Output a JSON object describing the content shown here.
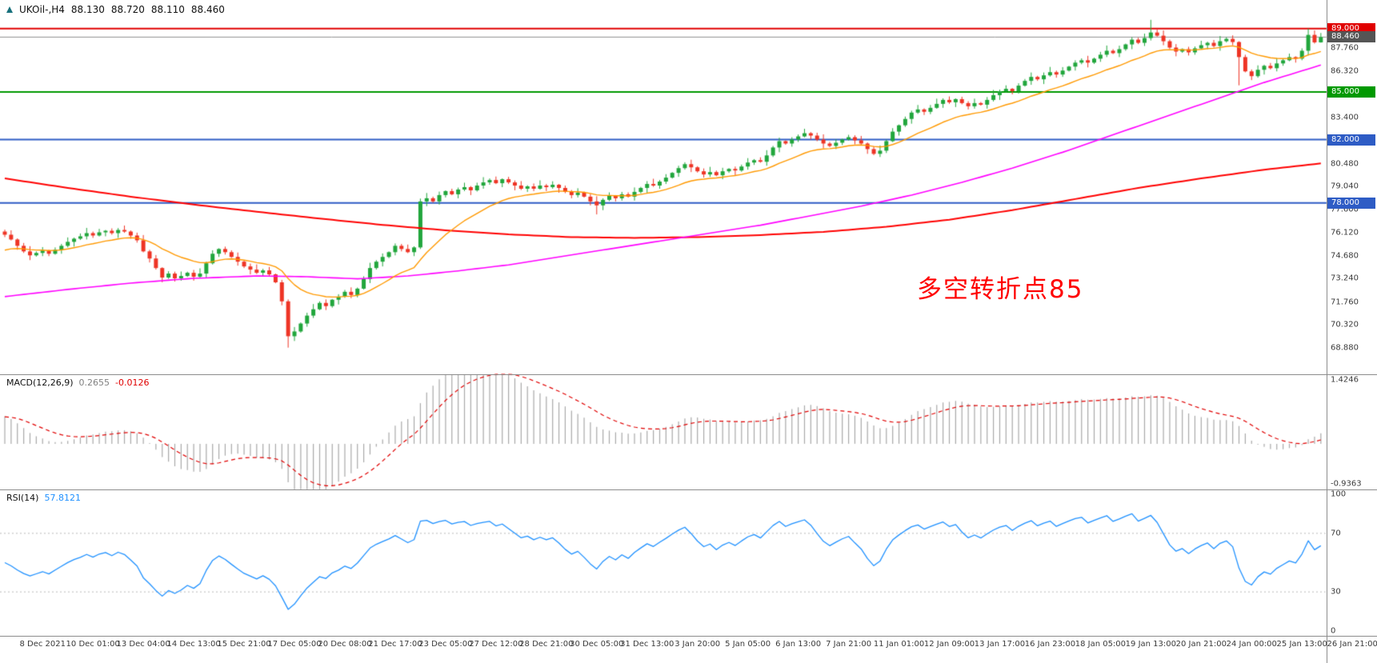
{
  "annotation": {
    "text": "多空转折点85",
    "color": "#ff0000"
  },
  "colors": {
    "candle_up": "#21a63c",
    "candle_down": "#ee3425",
    "ma_fast": "#ff9900",
    "ma_mid": "#ff00ff",
    "ma_slow": "#ff0000",
    "bid_line": "#8f8f8f",
    "macd_bar": "#a8a8a8",
    "macd_signal": "#e00000",
    "rsi_line": "#1e90ff",
    "level_dotted": "#b8b8b8",
    "axis_text": "#3a3a3a"
  },
  "chart_data": [
    {
      "type": "candlestick",
      "title": "UKOil-,H4",
      "ohlc_display": {
        "open": "88.130",
        "high": "88.720",
        "low": "88.110",
        "close": "88.460"
      },
      "ylim": [
        67.2,
        90.8
      ],
      "first_open": 76.2,
      "closes": [
        76.0,
        75.7,
        75.3,
        74.95,
        74.7,
        74.85,
        75.0,
        74.8,
        75.05,
        75.3,
        75.55,
        75.75,
        75.9,
        76.1,
        75.95,
        76.15,
        76.25,
        76.1,
        76.3,
        76.2,
        75.95,
        75.65,
        74.95,
        74.5,
        73.9,
        73.3,
        73.55,
        73.25,
        73.4,
        73.6,
        73.35,
        73.55,
        74.2,
        74.8,
        75.1,
        74.9,
        74.6,
        74.3,
        74.0,
        73.8,
        73.6,
        73.75,
        73.5,
        73.0,
        71.8,
        69.6,
        69.9,
        70.4,
        70.9,
        71.3,
        71.7,
        71.5,
        71.9,
        72.1,
        72.4,
        72.2,
        72.6,
        73.2,
        73.9,
        74.3,
        74.6,
        74.9,
        75.3,
        75.1,
        74.9,
        75.2,
        78.1,
        78.3,
        78.1,
        78.5,
        78.75,
        78.55,
        78.85,
        79.0,
        78.8,
        79.1,
        79.3,
        79.45,
        79.25,
        79.5,
        79.3,
        79.1,
        78.9,
        79.05,
        78.9,
        79.1,
        79.0,
        79.15,
        78.95,
        78.7,
        78.5,
        78.65,
        78.4,
        78.1,
        77.85,
        78.2,
        78.45,
        78.3,
        78.55,
        78.4,
        78.7,
        78.95,
        79.2,
        79.1,
        79.35,
        79.6,
        79.9,
        80.2,
        80.45,
        80.25,
        80.0,
        79.8,
        79.95,
        79.75,
        80.0,
        80.15,
        80.05,
        80.3,
        80.55,
        80.7,
        80.6,
        81.0,
        81.5,
        81.9,
        81.75,
        82.0,
        82.2,
        82.4,
        82.25,
        82.0,
        81.75,
        81.6,
        81.8,
        82.0,
        82.15,
        81.95,
        81.75,
        81.4,
        81.1,
        81.3,
        81.9,
        82.5,
        82.9,
        83.3,
        83.7,
        83.9,
        83.75,
        84.0,
        84.25,
        84.5,
        84.35,
        84.55,
        84.3,
        84.1,
        84.3,
        84.2,
        84.5,
        84.8,
        85.05,
        85.2,
        85.05,
        85.4,
        85.7,
        85.95,
        85.8,
        86.05,
        86.25,
        86.1,
        86.35,
        86.6,
        86.85,
        87.0,
        86.85,
        87.1,
        87.35,
        87.6,
        87.45,
        87.7,
        88.0,
        88.3,
        88.1,
        88.4,
        88.75,
        88.55,
        88.2,
        87.8,
        87.55,
        87.7,
        87.5,
        87.75,
        87.95,
        88.1,
        87.9,
        88.2,
        88.35,
        88.15,
        87.2,
        86.3,
        86.0,
        86.4,
        86.65,
        86.5,
        86.8,
        87.0,
        87.2,
        87.1,
        87.6,
        88.6,
        88.13,
        88.46
      ],
      "wick_high": [
        0.12,
        0.28,
        0.07,
        0.18,
        0.33,
        0.1,
        0.22,
        0.05,
        0.15
      ],
      "wick_low": [
        0.15,
        0.06,
        0.25,
        0.1,
        0.3,
        0.08,
        0.2
      ],
      "high_overrides": {
        "182": 89.55,
        "207": 89.0,
        "209": 88.72
      },
      "low_overrides": {
        "45": 68.88,
        "94": 77.28,
        "196": 85.42,
        "209": 88.11
      },
      "x_labels": [
        "8 Dec 2021",
        "10 Dec 01:00",
        "13 Dec 04:00",
        "14 Dec 13:00",
        "15 Dec 21:00",
        "17 Dec 05:00",
        "20 Dec 08:00",
        "21 Dec 17:00",
        "23 Dec 05:00",
        "27 Dec 12:00",
        "28 Dec 21:00",
        "30 Dec 05:00",
        "31 Dec 13:00",
        "3 Jan 20:00",
        "5 Jan 05:00",
        "6 Jan 13:00",
        "7 Jan 21:00",
        "11 Jan 01:00",
        "12 Jan 09:00",
        "13 Jan 17:00",
        "16 Jan 23:00",
        "18 Jan 05:00",
        "19 Jan 13:00",
        "20 Jan 21:00",
        "24 Jan 00:00",
        "25 Jan 13:00",
        "26 Jan 21:00"
      ],
      "y_ticks": [
        "87.760",
        "86.320",
        "83.400",
        "80.480",
        "79.040",
        "77.600",
        "76.120",
        "74.680",
        "73.240",
        "71.760",
        "70.320",
        "68.880"
      ],
      "hlines": [
        {
          "price": 89.0,
          "label": "89.000",
          "color": "#e00000"
        },
        {
          "price": 85.0,
          "label": "85.000",
          "color": "#009900"
        },
        {
          "price": 82.0,
          "label": "82.000",
          "color": "#2e5cc5"
        },
        {
          "price": 78.0,
          "label": "78.000",
          "color": "#2e5cc5"
        }
      ],
      "bid": {
        "price": 88.46,
        "label": "88.460",
        "color": "#555555"
      },
      "overlays": [
        {
          "name": "ma-fast-orange",
          "type": "ema",
          "period": 16,
          "seed": 74.9,
          "color_key": "ma_fast",
          "width": 1.4
        },
        {
          "name": "ma-mid-magenta",
          "type": "points",
          "color_key": "ma_mid",
          "width": 1.6,
          "points": [
            [
              0,
              72.1
            ],
            [
              10,
              72.55
            ],
            [
              20,
              72.95
            ],
            [
              30,
              73.25
            ],
            [
              40,
              73.4
            ],
            [
              48,
              73.35
            ],
            [
              56,
              73.22
            ],
            [
              64,
              73.4
            ],
            [
              72,
              73.72
            ],
            [
              80,
              74.1
            ],
            [
              88,
              74.6
            ],
            [
              96,
              75.1
            ],
            [
              104,
              75.6
            ],
            [
              112,
              76.1
            ],
            [
              120,
              76.6
            ],
            [
              128,
              77.2
            ],
            [
              136,
              77.8
            ],
            [
              144,
              78.5
            ],
            [
              152,
              79.3
            ],
            [
              160,
              80.2
            ],
            [
              168,
              81.2
            ],
            [
              176,
              82.3
            ],
            [
              184,
              83.4
            ],
            [
              192,
              84.5
            ],
            [
              200,
              85.6
            ],
            [
              209,
              86.7
            ]
          ]
        },
        {
          "name": "ma-slow-red",
          "type": "points",
          "color_key": "ma_slow",
          "width": 2,
          "points": [
            [
              0,
              79.55
            ],
            [
              10,
              78.95
            ],
            [
              20,
              78.4
            ],
            [
              30,
              77.9
            ],
            [
              40,
              77.45
            ],
            [
              50,
              77.02
            ],
            [
              60,
              76.62
            ],
            [
              70,
              76.28
            ],
            [
              80,
              76.02
            ],
            [
              90,
              75.85
            ],
            [
              100,
              75.8
            ],
            [
              110,
              75.85
            ],
            [
              120,
              75.98
            ],
            [
              130,
              76.18
            ],
            [
              140,
              76.5
            ],
            [
              150,
              76.95
            ],
            [
              160,
              77.55
            ],
            [
              170,
              78.25
            ],
            [
              180,
              78.95
            ],
            [
              190,
              79.55
            ],
            [
              200,
              80.1
            ],
            [
              209,
              80.5
            ]
          ]
        }
      ]
    },
    {
      "type": "macd",
      "label": "MACD(12,26,9)",
      "fast": 12,
      "slow": 26,
      "signal": 9,
      "value_main": "0.2655",
      "value_signal": "-0.0126",
      "ylim": [
        -0.9363,
        1.4246
      ],
      "axis_max": "1.4246",
      "axis_min": "-0.9363",
      "seeds": {
        "fast": 75.9,
        "slow": 75.3,
        "signal": 0.55
      }
    },
    {
      "type": "rsi",
      "label": "RSI(14)",
      "period": 14,
      "value": "57.8121",
      "levels": [
        100,
        70,
        30,
        0
      ],
      "dotted_levels": [
        70,
        30
      ],
      "ylim": [
        0,
        100
      ]
    }
  ]
}
